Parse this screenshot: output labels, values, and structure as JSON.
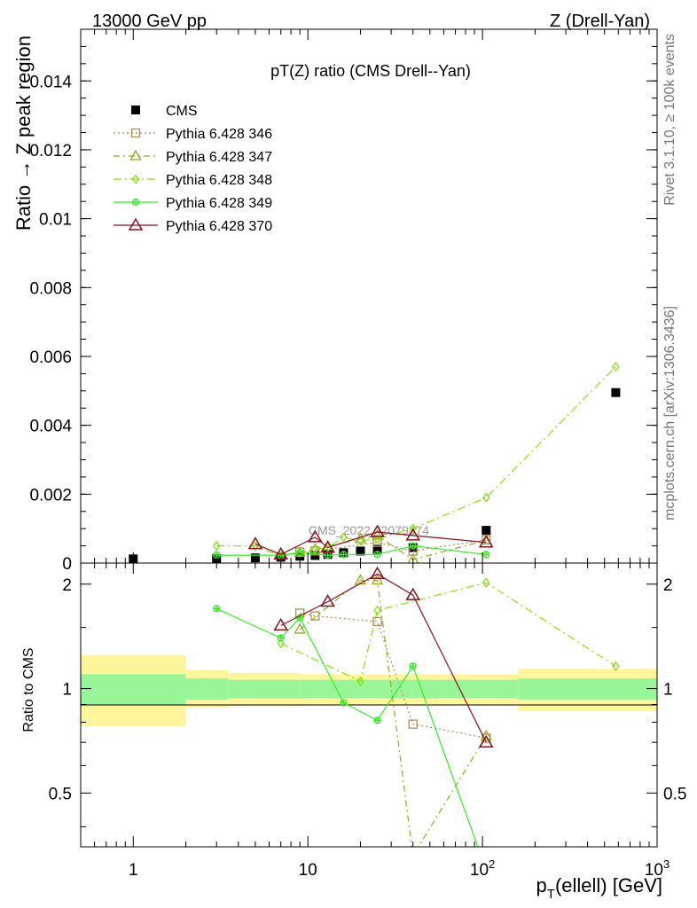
{
  "header": {
    "left": "13000 GeV pp",
    "right": "Z (Drell-Yan)",
    "title": "pT(Z) ratio (CMS Drell--Yan)",
    "ylabel_top": "Ratio → Z peak region",
    "ylabel_bottom": "Ratio to CMS",
    "xlabel": "p_T(ellell) [GeV]",
    "side_rivet": "Rivet 3.1.10, ≥ 100k events",
    "side_mcplots": "mcplots.cern.ch [arXiv:1306.3436]",
    "watermark": "CMS_2022_I2079374"
  },
  "legend": [
    {
      "label": "CMS",
      "color": "#000000",
      "marker": "square-filled",
      "dash": "none"
    },
    {
      "label": "Pythia 6.428 346",
      "color": "#b08a52",
      "marker": "square-open",
      "dash": "2,3"
    },
    {
      "label": "Pythia 6.428 347",
      "color": "#9aa820",
      "marker": "triangle-open",
      "dash": "7,4,2,4"
    },
    {
      "label": "Pythia 6.428 348",
      "color": "#88e010",
      "marker": "diamond-open",
      "dash": "9,4,2,4"
    },
    {
      "label": "Pythia 6.428 349",
      "color": "#33ee22",
      "marker": "circle-open",
      "dash": "none"
    },
    {
      "label": "Pythia 6.428 370",
      "color": "#8b1020",
      "marker": "triangle-open-big",
      "dash": "none"
    }
  ],
  "chart_data": {
    "type": "scatter",
    "x_scale": "log",
    "xlim": [
      0.5,
      1000
    ],
    "x_ticks": [
      1,
      10,
      100,
      1000
    ],
    "x_tick_labels": [
      "1",
      "10",
      "10²",
      "10³"
    ],
    "top": {
      "ylim": [
        0,
        0.0155
      ],
      "y_ticks": [
        0,
        0.002,
        0.004,
        0.006,
        0.008,
        0.01,
        0.012,
        0.014
      ],
      "y_tick_labels": [
        "0",
        "0.002",
        "0.004",
        "0.006",
        "0.008",
        "0.01",
        "0.012",
        "0.014"
      ],
      "series": [
        {
          "name": "CMS",
          "x": [
            1,
            3,
            5,
            7,
            9,
            11,
            13,
            16,
            20,
            25,
            40,
            105,
            580
          ],
          "y": [
            0.00012,
            0.00013,
            0.00015,
            0.00017,
            0.0002,
            0.00022,
            0.00025,
            0.0003,
            0.00035,
            0.0004,
            0.00045,
            0.00095,
            0.00495
          ]
        },
        {
          "name": "Pythia 6.428 346",
          "x": [
            9,
            11,
            25,
            40,
            105
          ],
          "y": [
            0.00032,
            0.00035,
            0.0006,
            0.00035,
            0.00068
          ]
        },
        {
          "name": "Pythia 6.428 347",
          "x": [
            9,
            11,
            20,
            25,
            40,
            105
          ],
          "y": [
            0.0003,
            0.0004,
            0.0007,
            0.0008,
            0.0001,
            0.00066
          ]
        },
        {
          "name": "Pythia 6.428 348",
          "x": [
            3,
            5,
            7,
            9,
            11,
            13,
            16,
            20,
            25,
            40,
            105,
            580
          ],
          "y": [
            0.0005,
            0.0005,
            0.0002,
            0.0003,
            0.0004,
            0.00045,
            0.00075,
            0.00065,
            0.0007,
            0.001,
            0.0019,
            0.0057
          ]
        },
        {
          "name": "Pythia 6.428 349",
          "x": [
            3,
            7,
            9,
            13,
            16,
            25,
            40,
            105
          ],
          "y": [
            0.00023,
            0.00023,
            0.0003,
            0.00023,
            0.00025,
            0.00025,
            0.0005,
            0.00025
          ]
        },
        {
          "name": "Pythia 6.428 370",
          "x": [
            5,
            7,
            11,
            13,
            25,
            40,
            105
          ],
          "y": [
            0.00055,
            0.00025,
            0.00075,
            0.00045,
            0.0009,
            0.0008,
            0.0006
          ]
        }
      ]
    },
    "bottom": {
      "ylim": [
        0.35,
        2.3
      ],
      "y_ticks": [
        0.5,
        1,
        2
      ],
      "y_tick_labels": [
        "0.5",
        "1",
        "2"
      ],
      "bands": [
        {
          "x": [
            0.5,
            2
          ],
          "inner": [
            0.9,
            1.1
          ],
          "outer": [
            0.78,
            1.25
          ]
        },
        {
          "x": [
            2,
            3.5
          ],
          "inner": [
            0.93,
            1.07
          ],
          "outer": [
            0.88,
            1.13
          ]
        },
        {
          "x": [
            3.5,
            9
          ],
          "inner": [
            0.94,
            1.06
          ],
          "outer": [
            0.89,
            1.11
          ]
        },
        {
          "x": [
            9,
            40
          ],
          "inner": [
            0.94,
            1.06
          ],
          "outer": [
            0.9,
            1.1
          ]
        },
        {
          "x": [
            40,
            160
          ],
          "inner": [
            0.94,
            1.06
          ],
          "outer": [
            0.9,
            1.1
          ]
        },
        {
          "x": [
            160,
            1000
          ],
          "inner": [
            0.93,
            1.07
          ],
          "outer": [
            0.86,
            1.14
          ]
        }
      ],
      "series": [
        {
          "name": "Pythia 6.428 346",
          "x": [
            9,
            11,
            25,
            40,
            105
          ],
          "y": [
            1.65,
            1.62,
            1.56,
            0.79,
            0.72
          ]
        },
        {
          "name": "Pythia 6.428 347",
          "x": [
            9,
            20,
            25,
            40,
            105
          ],
          "y": [
            1.48,
            2.05,
            2.05,
            0.33,
            0.73
          ]
        },
        {
          "name": "Pythia 6.428 348",
          "x": [
            7,
            20,
            25,
            105,
            580
          ],
          "y": [
            1.35,
            1.05,
            1.68,
            2.02,
            1.16
          ]
        },
        {
          "name": "Pythia 6.428 349",
          "x": [
            3,
            7,
            9,
            16,
            25,
            40,
            105
          ],
          "y": [
            1.7,
            1.4,
            1.6,
            0.91,
            0.81,
            1.16,
            0.3
          ]
        },
        {
          "name": "Pythia 6.428 370",
          "x": [
            7,
            13,
            25,
            40,
            105
          ],
          "y": [
            1.52,
            1.78,
            2.14,
            1.86,
            0.7
          ]
        }
      ]
    }
  }
}
